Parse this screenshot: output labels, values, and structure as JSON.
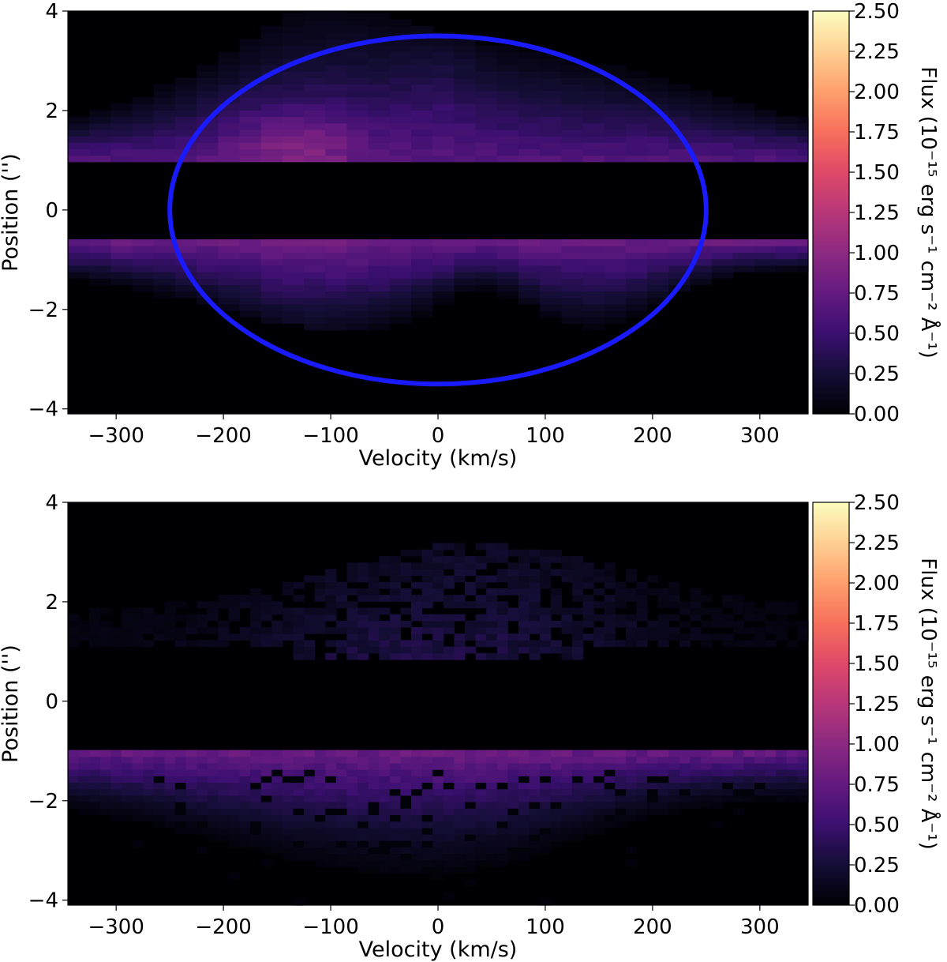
{
  "figure": {
    "type": "position-velocity diagrams",
    "panels": 2
  },
  "chart_data": [
    {
      "type": "heatmap",
      "panel": "top",
      "xlabel": "Velocity (km/s)",
      "ylabel": "Position ('')",
      "xlim": [
        -345,
        345
      ],
      "ylim": [
        -4.1,
        4.0
      ],
      "x_ticks": [
        -300,
        -200,
        -100,
        0,
        100,
        200,
        300
      ],
      "x_tick_labels": [
        "−300",
        "−200",
        "−100",
        "0",
        "100",
        "200",
        "300"
      ],
      "y_ticks": [
        -4,
        -2,
        0,
        2,
        4
      ],
      "y_tick_labels": [
        "−4",
        "−2",
        "0",
        "2",
        "4"
      ],
      "colormap": "magma",
      "colorbar": {
        "label": "Flux (10⁻¹⁵ erg s⁻¹ cm⁻² Å⁻¹)",
        "min": 0.0,
        "max": 2.5,
        "ticks": [
          0.0,
          0.25,
          0.5,
          0.75,
          1.0,
          1.25,
          1.5,
          1.75,
          2.0,
          2.25,
          2.5
        ],
        "tick_labels": [
          "0.00",
          "0.25",
          "0.50",
          "0.75",
          "1.00",
          "1.25",
          "1.50",
          "1.75",
          "2.00",
          "2.25",
          "2.50"
        ]
      },
      "pixel_size": {
        "velocity": 20,
        "position": 0.13
      },
      "masked_band_position": [
        -0.65,
        1.0
      ],
      "upper_emission": {
        "edge_position": 1.0,
        "edge_flux": 0.6,
        "extent_position": [
          1.0,
          3.4
        ],
        "peak": {
          "velocity": -130,
          "position": 1.35,
          "flux": 0.9
        }
      },
      "lower_emission": {
        "edge_position": -0.65,
        "edge_flux": 0.7,
        "extent_position": [
          -3.2,
          -0.65
        ]
      },
      "annotation": {
        "shape": "ellipse",
        "color": "#1a1aff",
        "center": [
          0,
          0
        ],
        "semi_axis_velocity": 250,
        "semi_axis_position": 3.5
      }
    },
    {
      "type": "heatmap",
      "panel": "bottom",
      "xlabel": "Velocity (km/s)",
      "ylabel": "Position ('')",
      "xlim": [
        -345,
        345
      ],
      "ylim": [
        -4.1,
        4.0
      ],
      "x_ticks": [
        -300,
        -200,
        -100,
        0,
        100,
        200,
        300
      ],
      "x_tick_labels": [
        "−300",
        "−200",
        "−100",
        "0",
        "100",
        "200",
        "300"
      ],
      "y_ticks": [
        -4,
        -2,
        0,
        2,
        4
      ],
      "y_tick_labels": [
        "−4",
        "−2",
        "0",
        "2",
        "4"
      ],
      "colormap": "magma",
      "colorbar": {
        "label": "Flux (10⁻¹⁵ erg s⁻¹ cm⁻² Å⁻¹)",
        "min": 0.0,
        "max": 2.5,
        "ticks": [
          0.0,
          0.25,
          0.5,
          0.75,
          1.0,
          1.25,
          1.5,
          1.75,
          2.0,
          2.25,
          2.5
        ],
        "tick_labels": [
          "0.00",
          "0.25",
          "0.50",
          "0.75",
          "1.00",
          "1.25",
          "1.50",
          "1.75",
          "2.00",
          "2.25",
          "2.50"
        ]
      },
      "pixel_size": {
        "velocity": 10,
        "position": 0.13
      },
      "masked_band_position": [
        -1.0,
        0.8
      ],
      "upper_emission": {
        "edge_position": 0.8,
        "extent_position": [
          0.8,
          2.9
        ],
        "peak_flux": 0.3
      },
      "lower_emission": {
        "edge_position": -1.0,
        "edge_flux": 0.75,
        "extent_position": [
          -3.3,
          -1.0
        ]
      }
    }
  ]
}
